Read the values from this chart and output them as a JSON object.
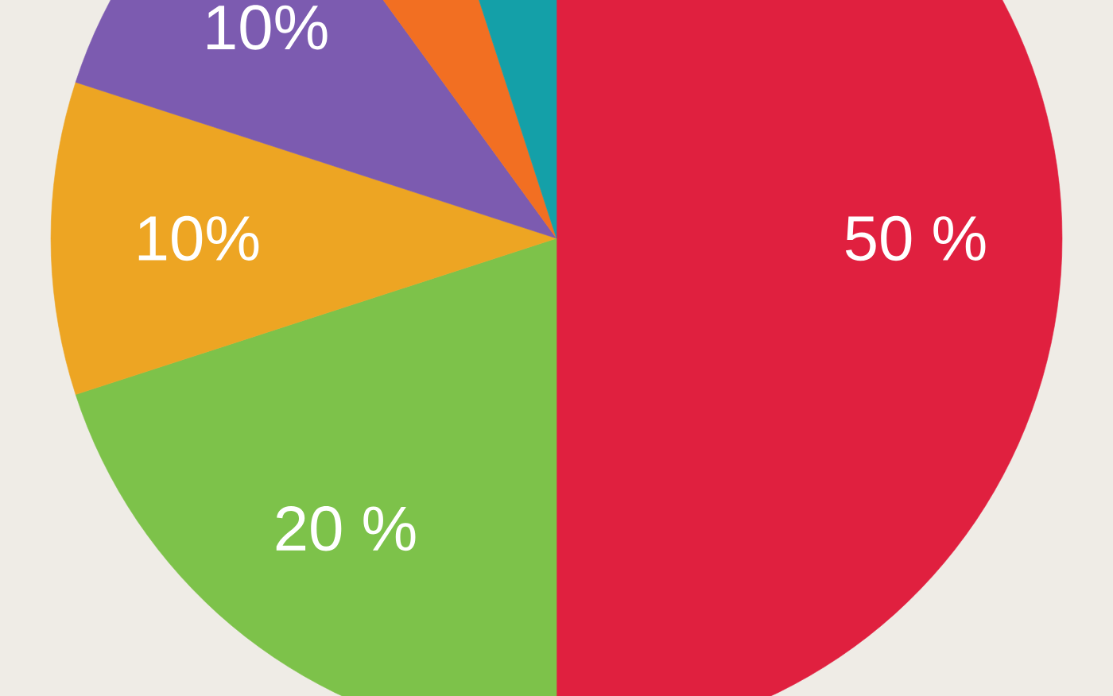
{
  "chart_data": {
    "type": "pie",
    "categories": [
      null,
      null,
      null,
      null,
      null,
      null
    ],
    "values": [
      50,
      20,
      10,
      10,
      5,
      5
    ],
    "colors": [
      "#e0203f",
      "#7dc24a",
      "#eda523",
      "#7c5bb0",
      "#f26f22",
      "#14a0a8"
    ],
    "value_labels": [
      "50 %",
      "20 %",
      "10%",
      "10%",
      null,
      null
    ]
  }
}
